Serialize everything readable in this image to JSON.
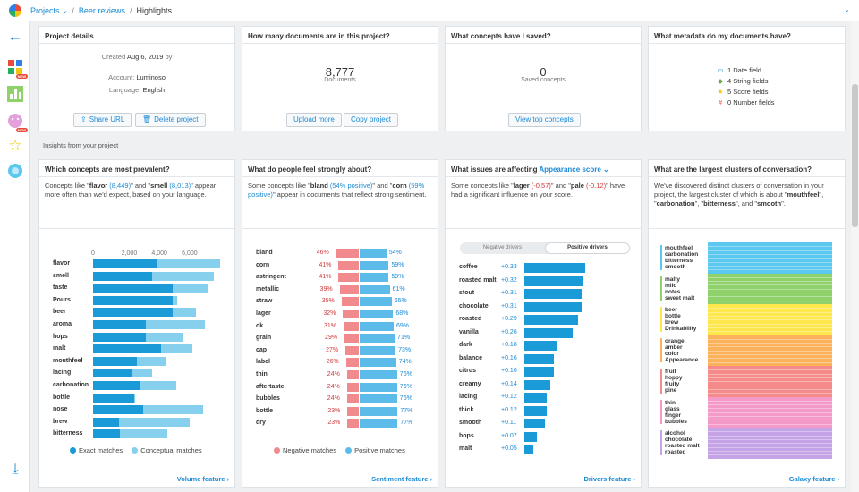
{
  "breadcrumb": {
    "projects": "Projects",
    "project": "Beer reviews",
    "current": "Highlights"
  },
  "project_details": {
    "title": "Project details",
    "created_prefix": "Created ",
    "created_date": "Aug 6, 2019",
    "created_suffix": " by",
    "account_label": "Account: ",
    "account_value": "Luminoso",
    "language_label": "Language: ",
    "language_value": "English",
    "share_btn": "Share URL",
    "delete_btn": "Delete project"
  },
  "documents": {
    "title": "How many documents are in this project?",
    "count": "8,777",
    "label": "Documents",
    "upload_btn": "Upload more",
    "copy_btn": "Copy project"
  },
  "saved": {
    "title": "What concepts have I saved?",
    "count": "0",
    "label": "Saved concepts",
    "view_btn": "View top concepts"
  },
  "metadata": {
    "title": "What metadata do my documents have?",
    "rows": [
      {
        "count": "1",
        "label": "Date field",
        "icon": "calendar-icon",
        "color": "#2b9bd8"
      },
      {
        "count": "4",
        "label": "String fields",
        "icon": "tag-icon",
        "color": "#6aa84f"
      },
      {
        "count": "5",
        "label": "Score fields",
        "icon": "star-icon",
        "color": "#f1c40f"
      },
      {
        "count": "0",
        "label": "Number fields",
        "icon": "hash-icon",
        "color": "#e74c3c"
      }
    ]
  },
  "insights_label": "Insights from your project",
  "volume": {
    "title": "Which concepts are most prevalent?",
    "desc_a": "Concepts like \"",
    "c1": "flavor",
    "c1n": " (8,449)",
    "desc_b": "\" and \"",
    "c2": "smell",
    "c2n": " (8,013)",
    "desc_c": "\" appear more often than we'd expect, based on your language.",
    "legend_exact": "Exact matches",
    "legend_conceptual": "Conceptual matches",
    "link": "Volume feature ›"
  },
  "sentiment": {
    "title": "What do people feel strongly about?",
    "desc_a": "Some concepts like \"",
    "c1": "bland",
    "c1n": " (54% positive)",
    "desc_b": "\" and \"",
    "c2": "corn",
    "c2n": " (59% positive)",
    "desc_c": "\" appear in documents that reflect strong sentiment.",
    "legend_neg": "Negative matches",
    "legend_pos": "Positive matches",
    "link": "Sentiment feature ›"
  },
  "drivers": {
    "title_a": "What issues are affecting ",
    "title_field": "Appearance score",
    "desc_a": "Some concepts like \"",
    "c1": "lager",
    "c1n": " (-0.57)",
    "desc_b": "\" and \"",
    "c2": "pale",
    "c2n": " (-0.12)",
    "desc_c": "\" have had a significant influence on your score.",
    "tab_neg": "Negative drivers",
    "tab_pos": "Positive drivers",
    "link": "Drivers feature ›"
  },
  "galaxy": {
    "title": "What are the largest clusters of conversation?",
    "desc_a": "We've discovered distinct clusters of conversation in your project, the largest cluster of which is about \"",
    "t1": "mouthfeel",
    "desc_b": "\", \"",
    "t2": "carbonation",
    "desc_c": "\", \"",
    "t3": "bitterness",
    "desc_d": "\", and \"",
    "t4": "smooth",
    "desc_e": "\".",
    "clusters": [
      {
        "terms": "mouthfeel\ncarbonation\nbitterness\nsmooth",
        "color": "#5bc8ef"
      },
      {
        "terms": "malty\nmild\nnotes\nsweet malt",
        "color": "#8fd16a"
      },
      {
        "terms": "beer\nbottle\nbrew\nDrinkability",
        "color": "#fde74c"
      },
      {
        "terms": "orange\namber\ncolor\nAppearance",
        "color": "#fbb25b"
      },
      {
        "terms": "fruit\nhoppy\nfruity\npine",
        "color": "#f48a8a"
      },
      {
        "terms": "thin\nglass\nfinger\nbubbles",
        "color": "#f49ac9"
      },
      {
        "terms": "alcohol\nchocolate\nroasted malt\nroasted",
        "color": "#c4a3e6"
      }
    ],
    "link": "Galaxy feature ›"
  },
  "chart_data": [
    {
      "type": "bar",
      "title": "Which concepts are most prevalent?",
      "xlim": [
        0,
        8900
      ],
      "x_ticks": [
        "0",
        "2,000",
        "4,000",
        "6,000"
      ],
      "x_tick_values": [
        0,
        2000,
        4000,
        6000
      ],
      "categories": [
        "flavor",
        "smell",
        "taste",
        "Pours",
        "beer",
        "aroma",
        "hops",
        "malt",
        "mouthfeel",
        "lacing",
        "carbonation",
        "bottle",
        "nose",
        "brew",
        "bitterness"
      ],
      "series": [
        {
          "name": "Exact matches",
          "color": "#1a9ad6",
          "values": [
            4200,
            3900,
            5300,
            5300,
            5300,
            3500,
            3500,
            4500,
            2900,
            2600,
            3100,
            2700,
            3300,
            1700,
            1800
          ]
        },
        {
          "name": "Conceptual matches",
          "color": "#86d0ee",
          "values": [
            8449,
            8013,
            7600,
            5600,
            6800,
            7400,
            6000,
            6600,
            4800,
            3900,
            5500,
            2800,
            7300,
            6400,
            4900
          ]
        }
      ]
    },
    {
      "type": "bar",
      "title": "What do people feel strongly about?",
      "categories": [
        "bland",
        "corn",
        "astringent",
        "metallic",
        "straw",
        "lager",
        "ok",
        "grain",
        "cap",
        "label",
        "thin",
        "aftertaste",
        "bubbles",
        "bottle",
        "dry"
      ],
      "series": [
        {
          "name": "Negative matches",
          "color": "#f08a8c",
          "values": [
            46,
            41,
            41,
            39,
            35,
            32,
            31,
            29,
            27,
            26,
            24,
            24,
            24,
            23,
            23
          ],
          "labels": [
            "46%",
            "41%",
            "41%",
            "39%",
            "35%",
            "32%",
            "31%",
            "29%",
            "27%",
            "26%",
            "24%",
            "24%",
            "24%",
            "23%",
            "23%"
          ]
        },
        {
          "name": "Positive matches",
          "color": "#5cbbe9",
          "values": [
            54,
            59,
            59,
            61,
            65,
            68,
            69,
            71,
            73,
            74,
            76,
            76,
            76,
            77,
            77
          ],
          "labels": [
            "54%",
            "59%",
            "59%",
            "61%",
            "65%",
            "68%",
            "69%",
            "71%",
            "73%",
            "74%",
            "76%",
            "76%",
            "76%",
            "77%",
            "77%"
          ]
        }
      ]
    },
    {
      "type": "bar",
      "title": "Positive drivers",
      "categories": [
        "coffee",
        "roasted malt",
        "stout",
        "chocolate",
        "roasted",
        "vanilla",
        "dark",
        "balance",
        "citrus",
        "creamy",
        "lacing",
        "thick",
        "smooth",
        "hops",
        "malt"
      ],
      "values": [
        0.33,
        0.32,
        0.31,
        0.31,
        0.29,
        0.26,
        0.18,
        0.16,
        0.16,
        0.14,
        0.12,
        0.12,
        0.11,
        0.07,
        0.05
      ],
      "labels": [
        "+0.33",
        "+0.32",
        "+0.31",
        "+0.31",
        "+0.29",
        "+0.26",
        "+0.18",
        "+0.16",
        "+0.16",
        "+0.14",
        "+0.12",
        "+0.12",
        "+0.11",
        "+0.07",
        "+0.05"
      ],
      "color": "#1a9ad6",
      "xlim": [
        0,
        0.33
      ]
    }
  ]
}
